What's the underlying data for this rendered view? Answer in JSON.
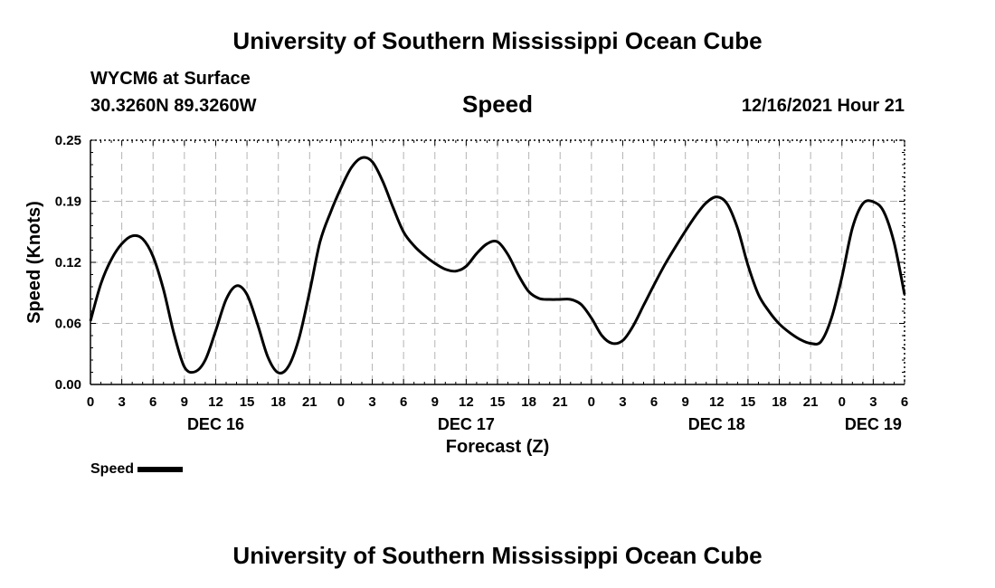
{
  "header": {
    "title": "University of Southern Mississippi Ocean Cube",
    "station": "WYCM6 at Surface",
    "coordinates": "30.3260N  89.3260W",
    "timestamp": "12/16/2021 Hour 21"
  },
  "footer": {
    "title": "University of Southern Mississippi Ocean Cube"
  },
  "legend": {
    "label": "Speed"
  },
  "chart_data": {
    "type": "line",
    "title": "Speed",
    "xlabel": "Forecast (Z)",
    "ylabel": "Speed (Knots)",
    "ylim": [
      0,
      0.25
    ],
    "yticks": [
      "0.00",
      "0.06",
      "0.12",
      "0.19",
      "0.25"
    ],
    "ytick_values": [
      0,
      0.0625,
      0.125,
      0.1875,
      0.25
    ],
    "xlim": [
      0,
      78
    ],
    "x_unit": "hours from 12/16/2021 00Z",
    "xtick_hours": [
      0,
      3,
      6,
      9,
      12,
      15,
      18,
      21,
      24,
      27,
      30,
      33,
      36,
      39,
      42,
      45,
      48,
      51,
      54,
      57,
      60,
      63,
      66,
      69,
      72,
      75,
      78
    ],
    "xtick_labels": [
      "0",
      "3",
      "6",
      "9",
      "12",
      "15",
      "18",
      "21",
      "0",
      "3",
      "6",
      "9",
      "12",
      "15",
      "18",
      "21",
      "0",
      "3",
      "6",
      "9",
      "12",
      "15",
      "18",
      "21",
      "0",
      "3",
      "6"
    ],
    "day_labels": [
      {
        "label": "DEC 16",
        "hour": 12
      },
      {
        "label": "DEC 17",
        "hour": 36
      },
      {
        "label": "DEC 18",
        "hour": 60
      },
      {
        "label": "DEC 19",
        "hour": 75
      }
    ],
    "grid": true,
    "series": [
      {
        "name": "Speed",
        "color": "#000000",
        "x": [
          0,
          1,
          2,
          3,
          4,
          5,
          6,
          7,
          8,
          9,
          10,
          11,
          12,
          13,
          14,
          15,
          16,
          17,
          18,
          19,
          20,
          21,
          22,
          23,
          24,
          25,
          26,
          27,
          28,
          29,
          30,
          31,
          32,
          33,
          34,
          35,
          36,
          37,
          38,
          39,
          40,
          41,
          42,
          43,
          44,
          45,
          46,
          47,
          48,
          49,
          50,
          51,
          52,
          53,
          54,
          55,
          56,
          57,
          58,
          59,
          60,
          61,
          62,
          63,
          64,
          65,
          66,
          67,
          68,
          69,
          70,
          71,
          72,
          73,
          74,
          75,
          76,
          77,
          78
        ],
        "y": [
          0.065,
          0.103,
          0.128,
          0.144,
          0.152,
          0.149,
          0.131,
          0.097,
          0.052,
          0.018,
          0.013,
          0.025,
          0.055,
          0.087,
          0.101,
          0.092,
          0.062,
          0.028,
          0.012,
          0.019,
          0.048,
          0.095,
          0.146,
          0.176,
          0.201,
          0.222,
          0.232,
          0.228,
          0.208,
          0.181,
          0.156,
          0.142,
          0.132,
          0.124,
          0.118,
          0.116,
          0.121,
          0.134,
          0.144,
          0.146,
          0.133,
          0.112,
          0.095,
          0.088,
          0.087,
          0.087,
          0.087,
          0.082,
          0.068,
          0.05,
          0.042,
          0.045,
          0.06,
          0.081,
          0.102,
          0.122,
          0.14,
          0.157,
          0.173,
          0.186,
          0.192,
          0.185,
          0.16,
          0.122,
          0.092,
          0.075,
          0.062,
          0.053,
          0.046,
          0.042,
          0.044,
          0.068,
          0.11,
          0.16,
          0.185,
          0.187,
          0.177,
          0.145,
          0.092
        ]
      }
    ]
  }
}
